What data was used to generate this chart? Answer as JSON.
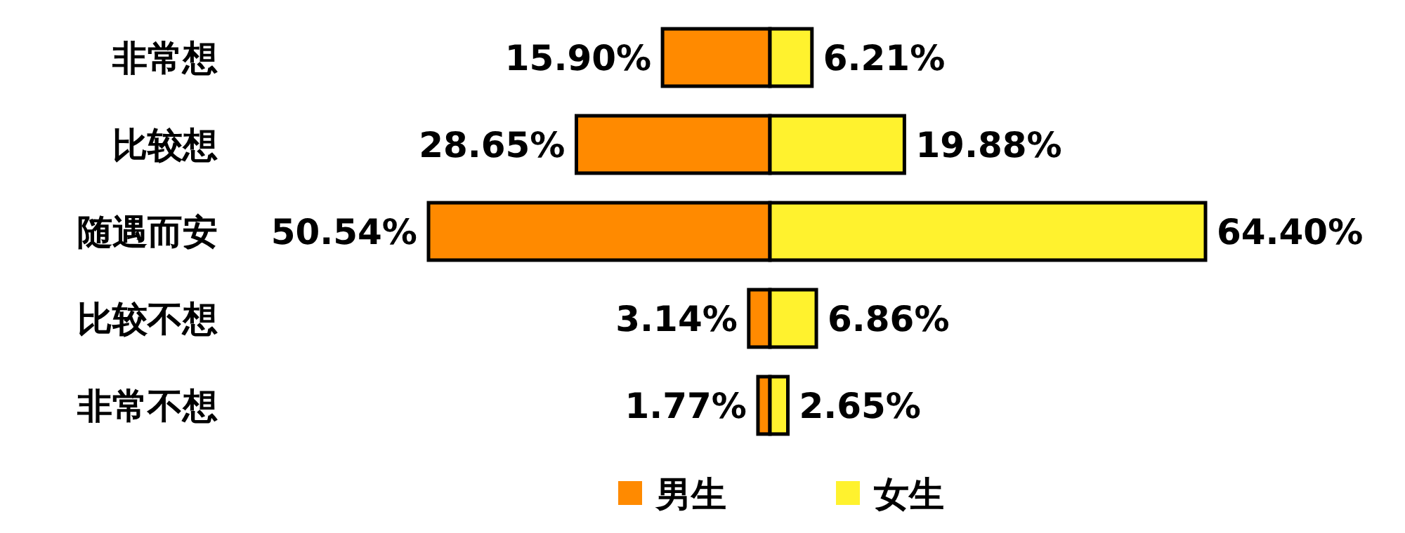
{
  "chart_data": [
    {
      "type": "bar",
      "orientation": "horizontal",
      "legend": "bottom",
      "xlim": [
        50.54,
        0
      ],
      "categories": [
        "非常想",
        "比较想",
        "随遇而安",
        "比较不想",
        "非常不想"
      ],
      "series": [
        {
          "name": "男生",
          "color": "#ff8a00",
          "values": [
            15.9,
            28.65,
            50.54,
            3.14,
            1.77
          ],
          "value_labels": [
            "15.90%",
            "28.65%",
            "50.54%",
            "3.14%",
            "1.77%"
          ]
        }
      ]
    },
    {
      "type": "bar",
      "orientation": "horizontal",
      "legend": "bottom",
      "xlim": [
        0,
        64.4
      ],
      "categories": [
        null,
        null,
        null,
        null,
        null
      ],
      "series": [
        {
          "name": "女生",
          "color": "#fff22e",
          "values": [
            6.21,
            19.88,
            64.4,
            6.86,
            2.65
          ],
          "value_labels": [
            "6.21%",
            "19.88%",
            "64.40%",
            "6.86%",
            "2.65%"
          ]
        }
      ]
    }
  ]
}
